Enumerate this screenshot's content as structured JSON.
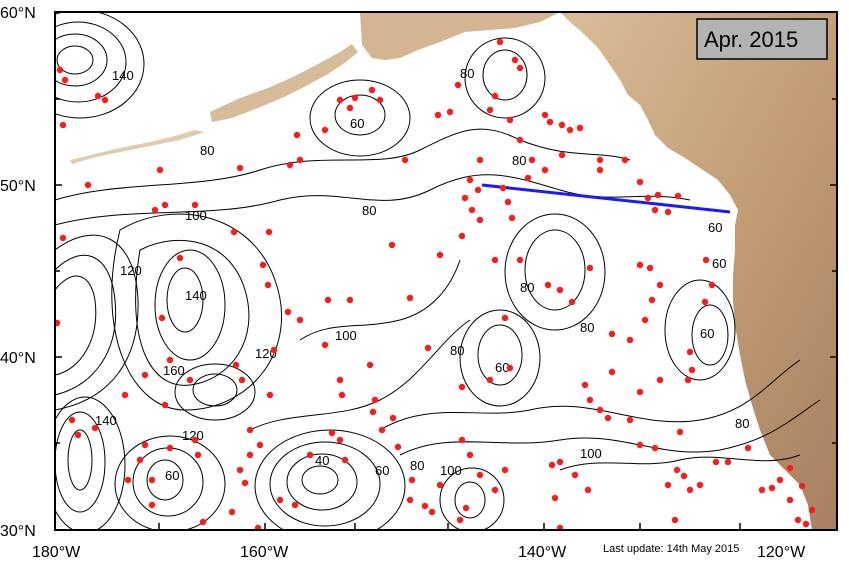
{
  "date_label": "Apr. 2015",
  "last_update": "Last update: 14th May 2015",
  "lat_labels": [
    "60°N",
    "50°N",
    "40°N",
    "30°N"
  ],
  "lon_labels": [
    "180°W",
    "160°W",
    "140°W",
    "120°W"
  ],
  "contour_labels": [
    "60",
    "80",
    "100",
    "120",
    "140",
    "160",
    "40"
  ],
  "colors": {
    "land": "#c9a883",
    "land_dark": "#a07d5c",
    "ocean": "#ffffff",
    "float": "#ff1a1a",
    "section_line": "#1a1aff",
    "date_box": "#b3b3b3"
  }
}
